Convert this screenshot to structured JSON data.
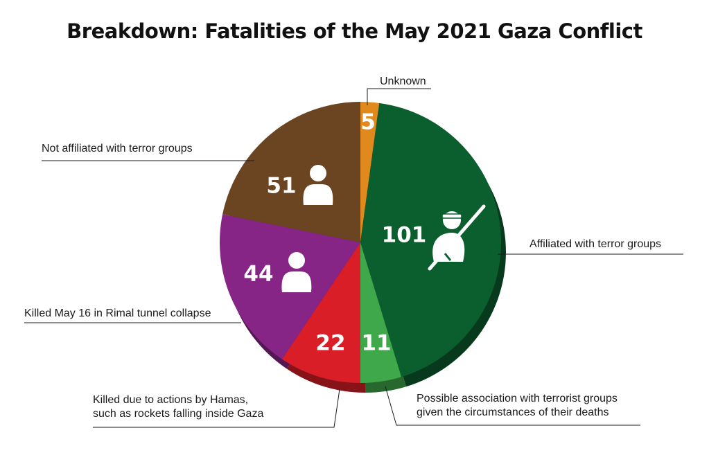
{
  "chart_data": {
    "type": "pie",
    "title": "Breakdown: Fatalities of the May 2021 Gaza Conflict",
    "slices": [
      {
        "label": "Unknown",
        "value": 5,
        "color": "#e08a1e",
        "icon": null
      },
      {
        "label": "Affiliated with terror groups",
        "value": 101,
        "color": "#0b5e2e",
        "icon": "fighter-with-rifle-icon"
      },
      {
        "label": "Possible association with terrorist groups given the circumstances of their deaths",
        "value": 11,
        "color": "#3ea84a",
        "icon": null
      },
      {
        "label": "Killed due to actions by Hamas, such as rockets falling inside Gaza",
        "value": 22,
        "color": "#d91e27",
        "icon": null
      },
      {
        "label": "Killed May 16 in Rimal tunnel collapse",
        "value": 44,
        "color": "#862586",
        "icon": "person-icon"
      },
      {
        "label": "Not affiliated with terror groups",
        "value": 51,
        "color": "#6b4521",
        "icon": "person-icon"
      }
    ]
  }
}
